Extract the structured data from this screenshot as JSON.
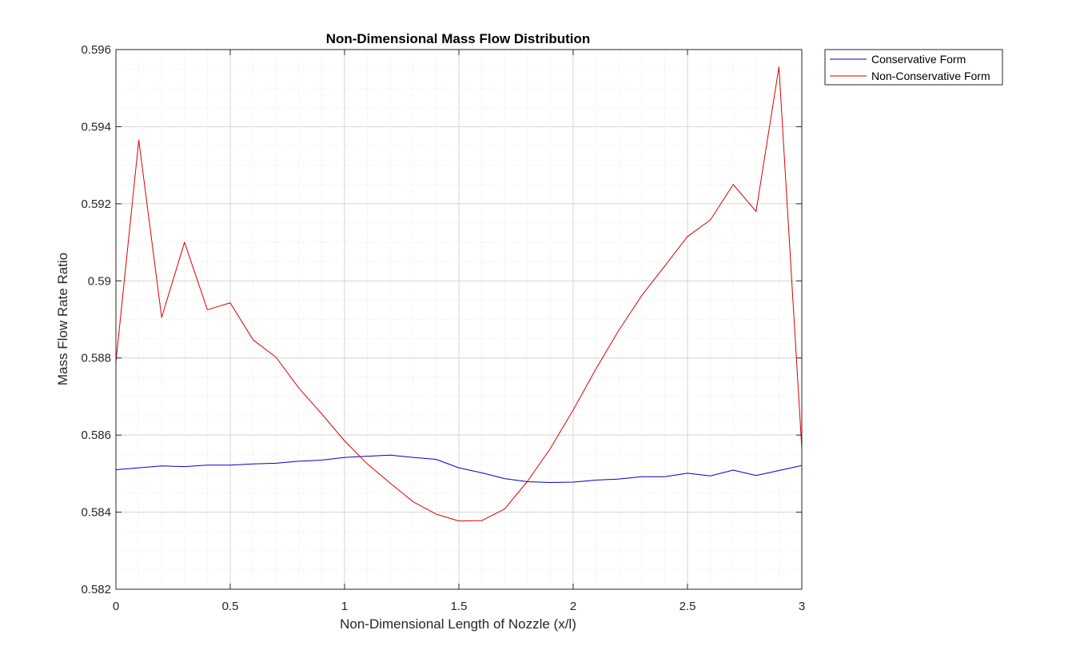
{
  "chart_data": {
    "type": "line",
    "title": "Non-Dimensional Mass Flow Distribution",
    "xlabel": "Non-Dimensional Length of Nozzle (x/l)",
    "ylabel": "Mass Flow Rate Ratio",
    "xlim": [
      0,
      3
    ],
    "ylim": [
      0.582,
      0.596
    ],
    "xticks": [
      0,
      0.5,
      1,
      1.5,
      2,
      2.5,
      3
    ],
    "xtick_labels": [
      "0",
      "0.5",
      "1",
      "1.5",
      "2",
      "2.5",
      "3"
    ],
    "yticks": [
      0.582,
      0.584,
      0.586,
      0.588,
      0.59,
      0.592,
      0.594,
      0.596
    ],
    "ytick_labels": [
      "0.582",
      "0.584",
      "0.586",
      "0.588",
      "0.59",
      "0.592",
      "0.594",
      "0.596"
    ],
    "grid": true,
    "minor_grid": true,
    "legend_position": "outside-top-right",
    "x": [
      0,
      0.1,
      0.2,
      0.3,
      0.4,
      0.5,
      0.6,
      0.7,
      0.8,
      0.9,
      1.0,
      1.1,
      1.2,
      1.3,
      1.4,
      1.5,
      1.6,
      1.7,
      1.8,
      1.9,
      2.0,
      2.1,
      2.2,
      2.3,
      2.4,
      2.5,
      2.6,
      2.7,
      2.8,
      2.9,
      3.0
    ],
    "series": [
      {
        "name": "Conservative Form",
        "color": "#0000cc",
        "values": [
          0.5851,
          0.58515,
          0.5852,
          0.58518,
          0.58522,
          0.58522,
          0.58525,
          0.58527,
          0.58532,
          0.58535,
          0.58542,
          0.58545,
          0.58548,
          0.58542,
          0.58537,
          0.58515,
          0.58502,
          0.58487,
          0.58479,
          0.58477,
          0.58478,
          0.58483,
          0.58486,
          0.58492,
          0.58492,
          0.58501,
          0.58494,
          0.58509,
          0.58495,
          0.58508,
          0.58521
        ]
      },
      {
        "name": "Non-Conservative Form",
        "color": "#dd0000",
        "values": [
          0.5879,
          0.59365,
          0.58905,
          0.591,
          0.58925,
          0.58943,
          0.58847,
          0.58802,
          0.58722,
          0.58655,
          0.58585,
          0.58525,
          0.58475,
          0.58427,
          0.58395,
          0.58377,
          0.58378,
          0.58408,
          0.5848,
          0.58565,
          0.58665,
          0.58772,
          0.58872,
          0.58962,
          0.59038,
          0.59115,
          0.59158,
          0.5925,
          0.5918,
          0.59555,
          0.58565
        ]
      }
    ]
  }
}
